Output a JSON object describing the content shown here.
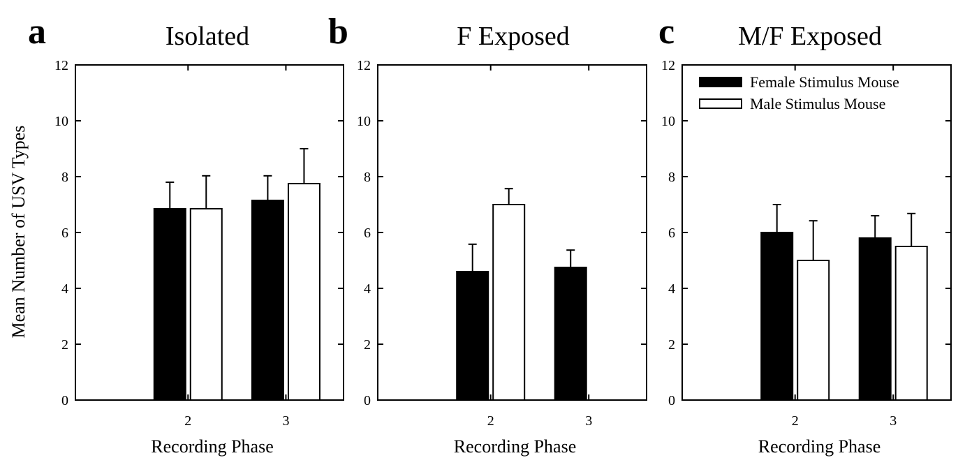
{
  "figure": {
    "y_axis_label": "Mean Number of USV Types"
  },
  "chart_data": [
    {
      "type": "bar",
      "panel_letter": "a",
      "title": "Isolated",
      "xlabel": "Recording Phase",
      "ylabel": "Mean Number of USV Types",
      "categories": [
        "2",
        "3"
      ],
      "ylim": [
        0,
        12
      ],
      "yticks": [
        0,
        2,
        4,
        6,
        8,
        10,
        12
      ],
      "series": [
        {
          "name": "Female Stimulus Mouse",
          "fill": "#000000",
          "values": [
            6.85,
            7.15
          ],
          "errors": [
            0.95,
            0.88
          ]
        },
        {
          "name": "Male Stimulus Mouse",
          "fill": "#ffffff",
          "values": [
            6.85,
            7.75
          ],
          "errors": [
            1.18,
            1.25
          ]
        }
      ]
    },
    {
      "type": "bar",
      "panel_letter": "b",
      "title": "F Exposed",
      "xlabel": "Recording Phase",
      "ylabel": "",
      "categories": [
        "2",
        "3"
      ],
      "ylim": [
        0,
        12
      ],
      "yticks": [
        0,
        2,
        4,
        6,
        8,
        10,
        12
      ],
      "series": [
        {
          "name": "Female Stimulus Mouse",
          "fill": "#000000",
          "values": [
            4.6,
            4.75
          ],
          "errors": [
            0.98,
            0.62
          ]
        },
        {
          "name": "Male Stimulus Mouse",
          "fill": "#ffffff",
          "values": [
            7.0,
            null
          ],
          "errors": [
            0.57,
            null
          ]
        }
      ]
    },
    {
      "type": "bar",
      "panel_letter": "c",
      "title": "M/F Exposed",
      "xlabel": "Recording Phase",
      "ylabel": "",
      "categories": [
        "2",
        "3"
      ],
      "ylim": [
        0,
        12
      ],
      "yticks": [
        0,
        2,
        4,
        6,
        8,
        10,
        12
      ],
      "legend": {
        "position": "top-left",
        "entries": [
          "Female Stimulus Mouse",
          "Male Stimulus Mouse"
        ]
      },
      "series": [
        {
          "name": "Female Stimulus Mouse",
          "fill": "#000000",
          "values": [
            6.0,
            5.8
          ],
          "errors": [
            1.0,
            0.8
          ]
        },
        {
          "name": "Male Stimulus Mouse",
          "fill": "#ffffff",
          "values": [
            5.0,
            5.5
          ],
          "errors": [
            1.42,
            1.18
          ]
        }
      ]
    }
  ]
}
